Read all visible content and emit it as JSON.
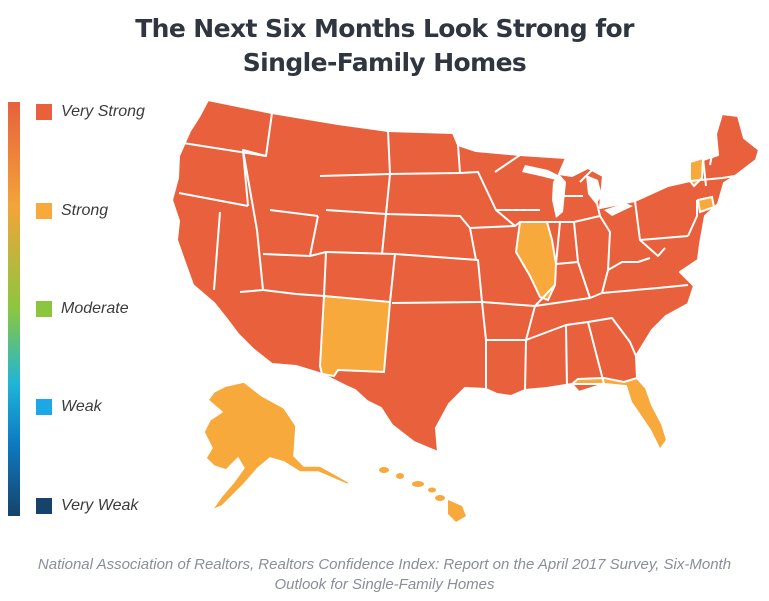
{
  "title": {
    "line1": "The Next Six Months Look Strong for",
    "line2": "Single-Family Homes"
  },
  "legend": [
    {
      "label": "Very Strong",
      "color": "#e8603c"
    },
    {
      "label": "Strong",
      "color": "#f7a93b"
    },
    {
      "label": "Moderate",
      "color": "#8cc63f"
    },
    {
      "label": "Weak",
      "color": "#1aa8e8"
    },
    {
      "label": "Very Weak",
      "color": "#16436b"
    }
  ],
  "states": {
    "very_strong": [
      "WA",
      "OR",
      "CA",
      "NV",
      "ID",
      "MT",
      "WY",
      "UT",
      "AZ",
      "CO",
      "ND",
      "SD",
      "NE",
      "KS",
      "OK",
      "TX",
      "MN",
      "IA",
      "MO",
      "AR",
      "LA",
      "WI",
      "MI",
      "IN",
      "OH",
      "KY",
      "TN",
      "MS",
      "AL",
      "GA",
      "SC",
      "NC",
      "VA",
      "WV",
      "PA",
      "NY",
      "NJ",
      "MD",
      "DE",
      "MA",
      "NH",
      "ME",
      "RI"
    ],
    "strong": [
      "NM",
      "IL",
      "FL",
      "VT",
      "CT",
      "AK",
      "HI"
    ]
  },
  "caption": {
    "line1": "National Association of Realtors, Realtors Confidence Index: Report on the April 2017 Survey, Six-Month",
    "line2": "Outlook for Single-Family Homes"
  }
}
